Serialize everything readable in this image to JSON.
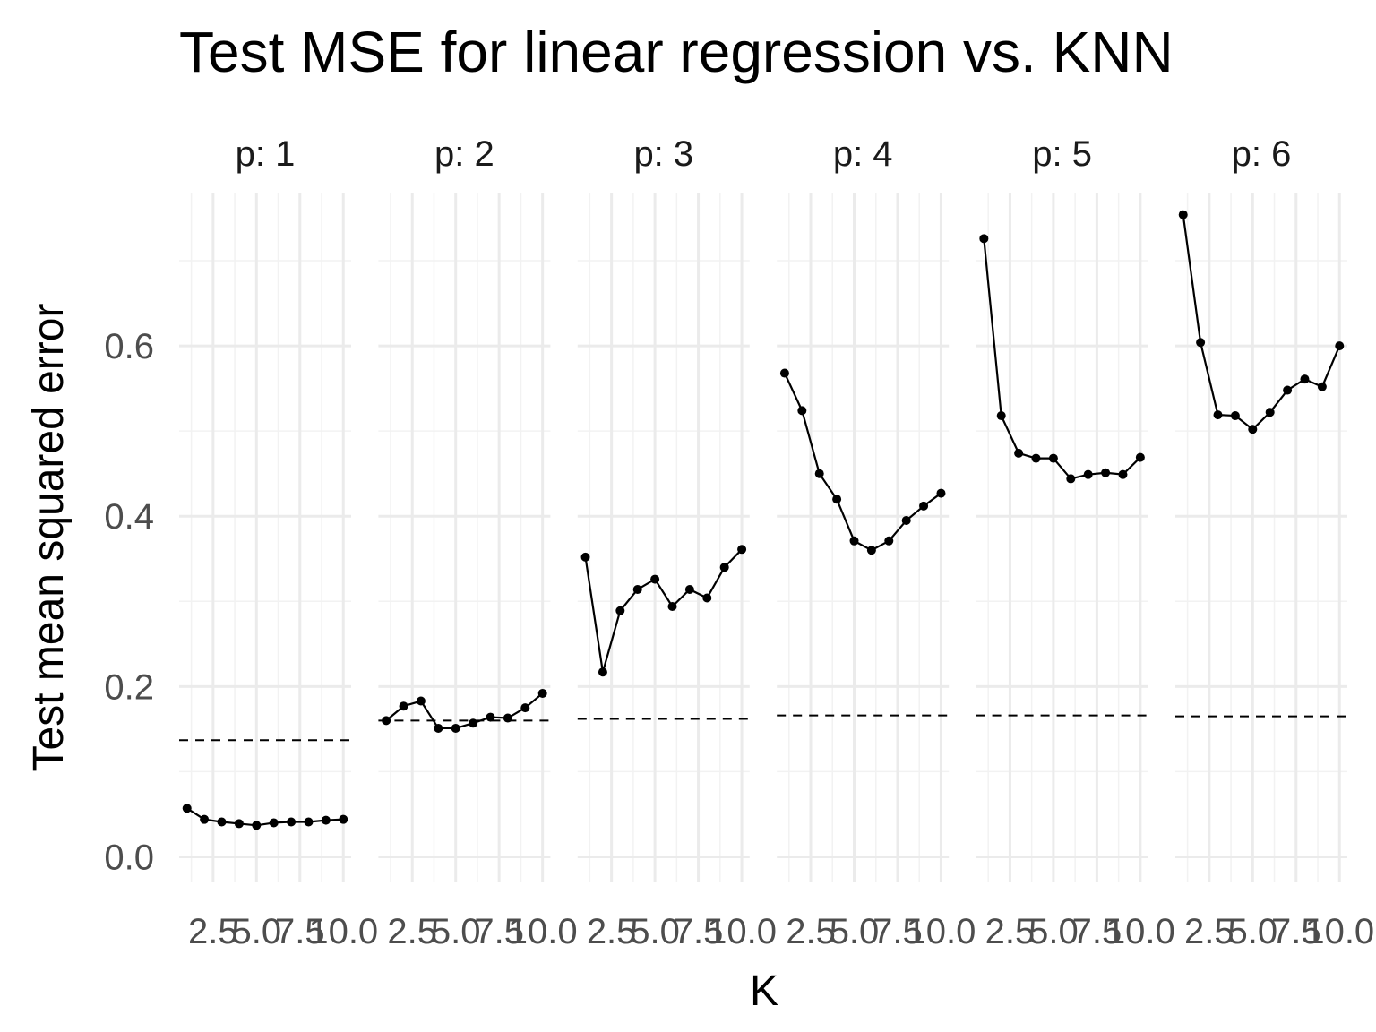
{
  "chart_data": {
    "type": "line",
    "title": "Test MSE for linear regression vs. KNN",
    "xlabel": "K",
    "ylabel": "Test mean squared error",
    "x": [
      1,
      2,
      3,
      4,
      5,
      6,
      7,
      8,
      9,
      10
    ],
    "xticks": [
      "2.5",
      "5.0",
      "7.5",
      "10.0"
    ],
    "xlim": [
      0.55,
      10.45
    ],
    "yticks": [
      "0.0",
      "0.2",
      "0.4",
      "0.6"
    ],
    "ylim": [
      -0.03,
      0.78
    ],
    "grid": true,
    "facets": [
      {
        "label": "p: 1",
        "knn_mse": [
          0.057,
          0.044,
          0.041,
          0.039,
          0.037,
          0.04,
          0.041,
          0.041,
          0.043,
          0.044
        ],
        "linear_regression_mse": 0.137
      },
      {
        "label": "p: 2",
        "knn_mse": [
          0.16,
          0.177,
          0.183,
          0.151,
          0.151,
          0.157,
          0.164,
          0.163,
          0.175,
          0.192
        ],
        "linear_regression_mse": 0.16
      },
      {
        "label": "p: 3",
        "knn_mse": [
          0.352,
          0.217,
          0.289,
          0.314,
          0.326,
          0.294,
          0.314,
          0.304,
          0.34,
          0.361
        ],
        "linear_regression_mse": 0.162
      },
      {
        "label": "p: 4",
        "knn_mse": [
          0.568,
          0.524,
          0.45,
          0.42,
          0.371,
          0.36,
          0.371,
          0.395,
          0.412,
          0.427
        ],
        "linear_regression_mse": 0.166
      },
      {
        "label": "p: 5",
        "knn_mse": [
          0.726,
          0.518,
          0.474,
          0.468,
          0.468,
          0.444,
          0.449,
          0.451,
          0.449,
          0.469
        ],
        "linear_regression_mse": 0.166
      },
      {
        "label": "p: 6",
        "knn_mse": [
          0.754,
          0.604,
          0.519,
          0.518,
          0.502,
          0.522,
          0.548,
          0.561,
          0.552,
          0.6
        ],
        "linear_regression_mse": 0.165
      }
    ]
  }
}
